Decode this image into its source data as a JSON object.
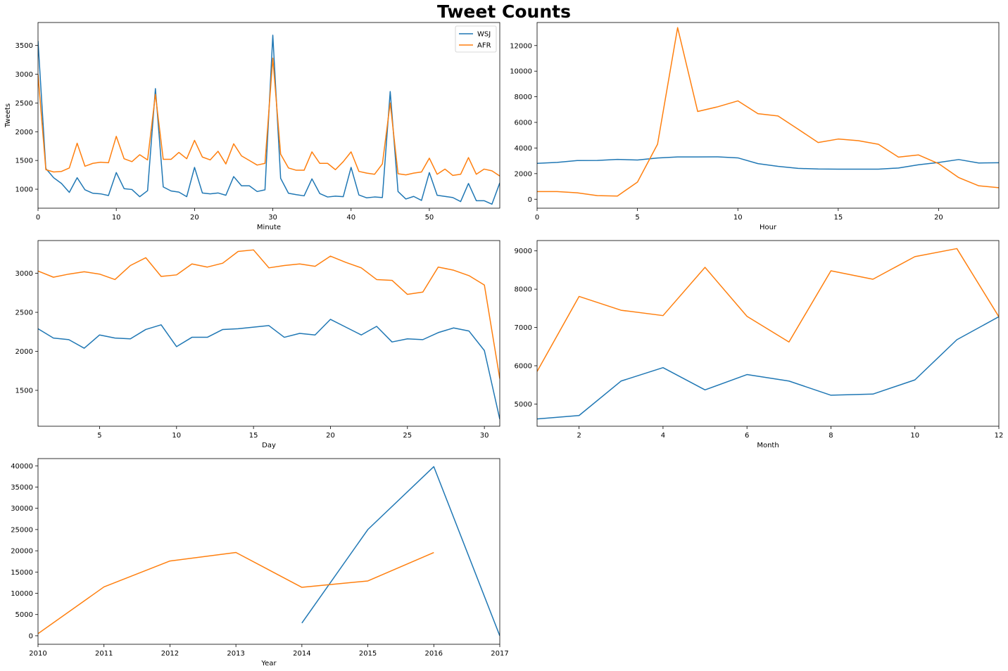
{
  "title": "Tweet Counts",
  "colors": {
    "WSJ": "#1f77b4",
    "AFR": "#ff7f0e"
  },
  "chart_data": [
    {
      "type": "line",
      "xlabel": "Minute",
      "ylabel": "Tweets",
      "xlim": [
        0,
        59
      ],
      "ylim": [
        670,
        3900
      ],
      "xticks": [
        0,
        10,
        20,
        30,
        40,
        50
      ],
      "yticks": [
        1000,
        1500,
        2000,
        2500,
        3000,
        3500
      ],
      "legend": "top-right",
      "x": [
        0,
        1,
        2,
        3,
        4,
        5,
        6,
        7,
        8,
        9,
        10,
        11,
        12,
        13,
        14,
        15,
        16,
        17,
        18,
        19,
        20,
        21,
        22,
        23,
        24,
        25,
        26,
        27,
        28,
        29,
        30,
        31,
        32,
        33,
        34,
        35,
        36,
        37,
        38,
        39,
        40,
        41,
        42,
        43,
        44,
        45,
        46,
        47,
        48,
        49,
        50,
        51,
        52,
        53,
        54,
        55,
        56,
        57,
        58,
        59
      ],
      "series": [
        {
          "name": "WSJ",
          "values": [
            3580,
            1360,
            1200,
            1100,
            945,
            1200,
            990,
            930,
            920,
            890,
            1290,
            1010,
            995,
            870,
            975,
            2750,
            1040,
            970,
            950,
            870,
            1380,
            935,
            920,
            935,
            895,
            1220,
            1060,
            1060,
            960,
            990,
            3680,
            1190,
            930,
            905,
            885,
            1180,
            925,
            865,
            880,
            870,
            1380,
            900,
            850,
            865,
            855,
            2700,
            960,
            830,
            875,
            805,
            1290,
            895,
            875,
            855,
            785,
            1100,
            800,
            800,
            740,
            1110
          ]
        },
        {
          "name": "AFR",
          "values": [
            3000,
            1340,
            1300,
            1310,
            1370,
            1800,
            1400,
            1450,
            1470,
            1460,
            1920,
            1530,
            1480,
            1600,
            1510,
            2650,
            1520,
            1520,
            1640,
            1530,
            1850,
            1560,
            1510,
            1660,
            1440,
            1790,
            1580,
            1500,
            1420,
            1450,
            3280,
            1610,
            1370,
            1330,
            1330,
            1650,
            1450,
            1450,
            1340,
            1480,
            1650,
            1310,
            1280,
            1260,
            1440,
            2500,
            1270,
            1250,
            1280,
            1300,
            1540,
            1260,
            1350,
            1240,
            1260,
            1550,
            1260,
            1350,
            1320,
            1230
          ]
        }
      ]
    },
    {
      "type": "line",
      "xlabel": "Hour",
      "ylabel": "",
      "xlim": [
        0,
        23
      ],
      "ylim": [
        -700,
        13800
      ],
      "xticks": [
        0,
        5,
        10,
        15,
        20
      ],
      "yticks": [
        0,
        2000,
        4000,
        6000,
        8000,
        10000,
        12000
      ],
      "x": [
        0,
        1,
        2,
        3,
        4,
        5,
        6,
        7,
        8,
        9,
        10,
        11,
        12,
        13,
        14,
        15,
        16,
        17,
        18,
        19,
        20,
        21,
        22,
        23
      ],
      "series": [
        {
          "values": [
            2800,
            2880,
            3020,
            3030,
            3110,
            3060,
            3220,
            3300,
            3300,
            3310,
            3230,
            2780,
            2570,
            2410,
            2360,
            2350,
            2350,
            2350,
            2440,
            2690,
            2870,
            3100,
            2830,
            2850
          ]
        },
        {
          "values": [
            600,
            600,
            500,
            280,
            250,
            1340,
            4300,
            13400,
            6850,
            7220,
            7680,
            6680,
            6500,
            5470,
            4430,
            4700,
            4570,
            4290,
            3290,
            3460,
            2780,
            1690,
            1050,
            900
          ]
        }
      ]
    },
    {
      "type": "line",
      "xlabel": "Day",
      "ylabel": "",
      "xlim": [
        1,
        31
      ],
      "ylim": [
        1040,
        3420
      ],
      "xticks": [
        5,
        10,
        15,
        20,
        25,
        30
      ],
      "yticks": [
        1500,
        2000,
        2500,
        3000
      ],
      "x": [
        1,
        2,
        3,
        4,
        5,
        6,
        7,
        8,
        9,
        10,
        11,
        12,
        13,
        14,
        15,
        16,
        17,
        18,
        19,
        20,
        21,
        22,
        23,
        24,
        25,
        26,
        27,
        28,
        29,
        30,
        31
      ],
      "series": [
        {
          "values": [
            2290,
            2170,
            2150,
            2040,
            2210,
            2170,
            2160,
            2280,
            2340,
            2060,
            2180,
            2180,
            2280,
            2290,
            2310,
            2330,
            2180,
            2230,
            2210,
            2410,
            2310,
            2210,
            2320,
            2120,
            2160,
            2150,
            2240,
            2300,
            2260,
            2010,
            1130
          ]
        },
        {
          "values": [
            3030,
            2950,
            2990,
            3020,
            2990,
            2920,
            3100,
            3200,
            2960,
            2980,
            3120,
            3080,
            3130,
            3280,
            3300,
            3070,
            3100,
            3120,
            3090,
            3220,
            3140,
            3070,
            2920,
            2910,
            2730,
            2760,
            3080,
            3040,
            2970,
            2850,
            1650
          ]
        }
      ]
    },
    {
      "type": "line",
      "xlabel": "Month",
      "ylabel": "",
      "xlim": [
        1,
        12
      ],
      "ylim": [
        4420,
        9270
      ],
      "xticks": [
        2,
        4,
        6,
        8,
        10,
        12
      ],
      "yticks": [
        5000,
        6000,
        7000,
        8000,
        9000
      ],
      "x": [
        1,
        2,
        3,
        4,
        5,
        6,
        7,
        8,
        9,
        10,
        11,
        12
      ],
      "series": [
        {
          "values": [
            4610,
            4700,
            5600,
            5950,
            5370,
            5770,
            5600,
            5230,
            5260,
            5630,
            6680,
            7280
          ]
        },
        {
          "values": [
            5850,
            7810,
            7450,
            7310,
            8570,
            7290,
            6620,
            8480,
            8260,
            8850,
            9060,
            7280
          ]
        }
      ]
    },
    {
      "type": "line",
      "xlabel": "Year",
      "ylabel": "",
      "xlim": [
        2010,
        2017
      ],
      "ylim": [
        -2000,
        41700
      ],
      "xticks": [
        2010,
        2011,
        2012,
        2013,
        2014,
        2015,
        2016,
        2017
      ],
      "yticks": [
        0,
        5000,
        10000,
        15000,
        20000,
        25000,
        30000,
        35000,
        40000
      ],
      "series": [
        {
          "x": [
            2014,
            2015,
            2016,
            2017
          ],
          "values": [
            3000,
            25000,
            39800,
            0
          ]
        },
        {
          "x": [
            2010,
            2011,
            2012,
            2013,
            2014,
            2015,
            2016
          ],
          "values": [
            500,
            11500,
            17600,
            19600,
            11400,
            12900,
            19600
          ]
        }
      ]
    }
  ]
}
